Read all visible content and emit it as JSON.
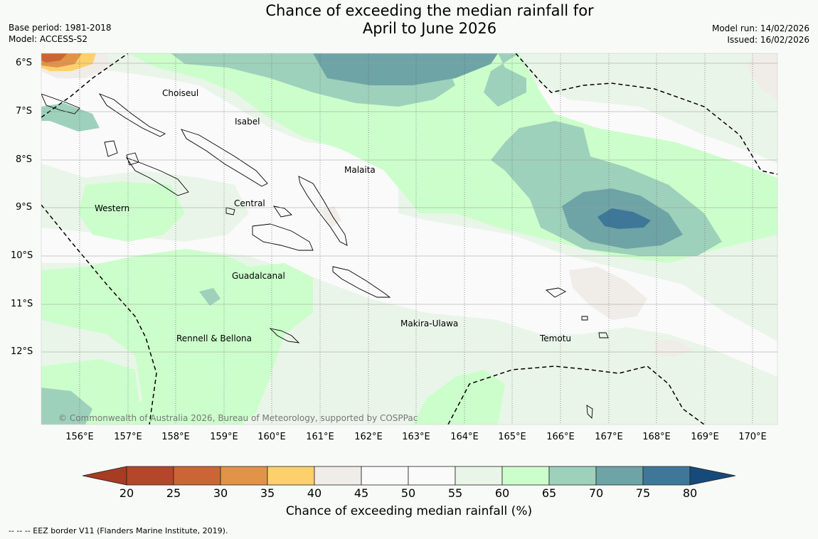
{
  "title": {
    "line1": "Chance of exceeding the median rainfall for",
    "line2": "April to June 2026"
  },
  "meta": {
    "base_period": "Base period: 1981-2018",
    "model": "Model: ACCESS-S2",
    "model_run": "Model run: 14/02/2026",
    "issued": "Issued: 16/02/2026"
  },
  "map": {
    "lon_labels": [
      "156°E",
      "157°E",
      "158°E",
      "159°E",
      "160°E",
      "161°E",
      "162°E",
      "163°E",
      "164°E",
      "165°E",
      "166°E",
      "167°E",
      "168°E",
      "169°E",
      "170°E"
    ],
    "lat_labels": [
      "6°S",
      "7°S",
      "8°S",
      "9°S",
      "10°S",
      "11°S",
      "12°S"
    ],
    "regions": [
      "Choiseul",
      "Isabel",
      "Malaita",
      "Western",
      "Central",
      "Guadalcanal",
      "Makira-Ulawa",
      "Rennell & Bellona",
      "Temotu"
    ],
    "copyright": "© Commonwealth of Australia 2026, Bureau of Meteorology, supported by COSPPac"
  },
  "colorbar": {
    "ticks": [
      "20",
      "25",
      "30",
      "35",
      "40",
      "45",
      "50",
      "55",
      "60",
      "65",
      "70",
      "75",
      "80"
    ],
    "colors": [
      "#a63c22",
      "#b4472a",
      "#cc6535",
      "#e19349",
      "#fdd06b",
      "#f0ece8",
      "#fafafa",
      "#fafafa",
      "#e9f5e9",
      "#ccfecb",
      "#9ed1bb",
      "#6ea4a6",
      "#3f7799",
      "#164a7a"
    ],
    "label": "Chance of exceeding median rainfall (%)"
  },
  "footer": "--  --  -- EEZ border V11 (Flanders Marine Institute, 2019)."
}
